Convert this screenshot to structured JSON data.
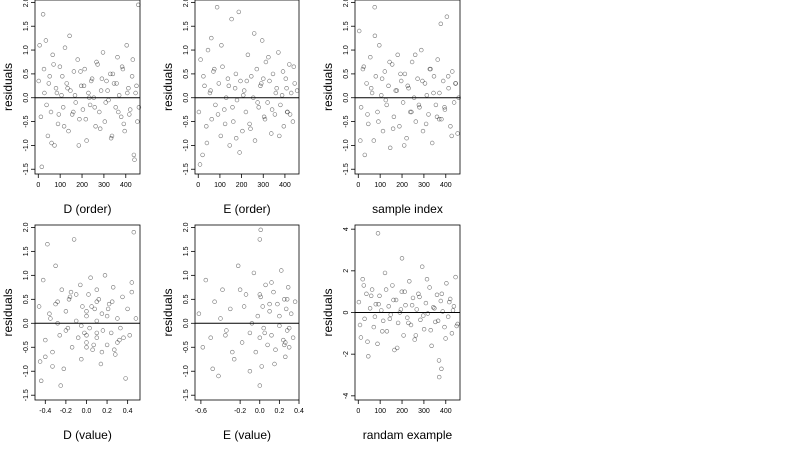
{
  "chart_data": [
    {
      "type": "scatter",
      "xlabel": "D (order)",
      "ylabel": "residuals",
      "xticks": [
        "0",
        "100",
        "200",
        "300",
        "400"
      ],
      "xtick_values": [
        0,
        100,
        200,
        300,
        400
      ],
      "yticks": [
        "-1.5",
        "-1.0",
        "-0.5",
        "0.0",
        "0.5",
        "1.0",
        "1.5",
        "2.0"
      ],
      "ytick_values": [
        -1.5,
        -1.0,
        -0.5,
        0.0,
        0.5,
        1.0,
        1.5,
        2.0
      ],
      "xlim": [
        -15,
        465
      ],
      "ylim": [
        -1.6,
        2.05
      ],
      "reference_line_y": 0,
      "x": [
        2,
        12,
        22,
        28,
        35,
        44,
        52,
        58,
        66,
        74,
        81,
        90,
        99,
        106,
        114,
        122,
        130,
        138,
        147,
        155,
        163,
        171,
        180,
        188,
        196,
        204,
        212,
        221,
        229,
        237,
        246,
        254,
        262,
        271,
        279,
        287,
        296,
        304,
        312,
        321,
        329,
        337,
        346,
        354,
        362,
        370,
        379,
        387,
        395,
        404,
        412,
        420,
        429,
        437,
        445,
        453,
        6,
        16,
        26,
        38,
        48,
        61,
        70,
        85,
        94,
        110,
        118,
        134,
        143,
        160,
        168,
        185,
        193,
        209,
        217,
        233,
        242,
        258,
        266,
        283,
        291,
        308,
        317,
        333,
        341,
        358,
        366,
        383,
        391,
        407,
        416,
        432,
        440,
        449,
        457,
        460
      ],
      "y": [
        0.35,
        -0.4,
        1.75,
        0.1,
        1.2,
        -0.8,
        0.45,
        -0.3,
        0.9,
        -1.0,
        0.2,
        -0.55,
        0.65,
        0.05,
        -0.2,
        1.05,
        0.3,
        -0.7,
        0.15,
        -0.35,
        0.55,
        -0.1,
        0.8,
        -0.45,
        0.25,
        -0.25,
        0.6,
        -0.9,
        0.1,
        -0.15,
        0.4,
        0.0,
        -0.6,
        0.7,
        -0.3,
        0.15,
        0.95,
        -0.5,
        0.35,
        -0.05,
        0.5,
        -0.8,
        0.3,
        -0.2,
        0.85,
        0.05,
        -0.4,
        0.6,
        -0.7,
        1.1,
        0.2,
        -0.25,
        0.45,
        -1.2,
        0.1,
        -0.5,
        1.1,
        -1.45,
        0.6,
        -0.15,
        0.3,
        -0.95,
        0.7,
        0.1,
        -0.35,
        0.45,
        -0.6,
        0.2,
        1.3,
        -0.3,
        0.05,
        -1.0,
        0.55,
        0.25,
        -0.45,
        0.0,
        0.35,
        -0.2,
        0.75,
        -0.65,
        0.4,
        -0.1,
        0.15,
        -0.85,
        0.5,
        0.3,
        -0.3,
        0.65,
        -0.55,
        0.1,
        -0.35,
        0.8,
        -1.3,
        0.25,
        1.95,
        -0.2
      ]
    },
    {
      "type": "scatter",
      "xlabel": "E (order)",
      "ylabel": "residuals",
      "xticks": [
        "0",
        "100",
        "200",
        "300",
        "400"
      ],
      "xtick_values": [
        0,
        100,
        200,
        300,
        400
      ],
      "yticks": [
        "-1.5",
        "-1.0",
        "-0.5",
        "0.0",
        "0.5",
        "1.0",
        "1.5",
        "2.0"
      ],
      "ytick_values": [
        -1.5,
        -1.0,
        -0.5,
        0.0,
        0.5,
        1.0,
        1.5,
        2.0
      ],
      "xlim": [
        -15,
        465
      ],
      "ylim": [
        -1.6,
        2.05
      ],
      "reference_line_y": 0,
      "x": [
        3,
        11,
        20,
        29,
        37,
        45,
        54,
        62,
        70,
        79,
        87,
        95,
        104,
        112,
        120,
        129,
        137,
        145,
        154,
        162,
        170,
        179,
        187,
        195,
        204,
        212,
        220,
        229,
        237,
        245,
        254,
        262,
        270,
        279,
        287,
        295,
        304,
        312,
        320,
        329,
        337,
        345,
        354,
        362,
        370,
        379,
        387,
        395,
        404,
        412,
        420,
        429,
        437,
        445,
        8,
        24,
        40,
        57,
        74,
        91,
        107,
        124,
        141,
        158,
        174,
        191,
        208,
        224,
        241,
        258,
        274,
        291,
        308,
        324,
        341,
        358,
        374,
        391,
        408,
        424,
        441,
        456,
        60,
        175,
        300,
        410
      ],
      "y": [
        -0.3,
        0.8,
        -1.2,
        0.25,
        -0.6,
        1.0,
        0.1,
        -0.45,
        0.55,
        -0.15,
        1.9,
        0.3,
        -0.8,
        0.65,
        -0.25,
        0.0,
        0.4,
        -1.0,
        1.65,
        -0.5,
        0.2,
        -0.05,
        1.8,
        0.35,
        -0.7,
        0.15,
        -0.3,
        0.9,
        -0.55,
        0.45,
        0.0,
        -0.9,
        0.6,
        -0.2,
        0.25,
        1.2,
        -0.4,
        0.75,
        -0.1,
        0.35,
        -0.75,
        0.5,
        -0.35,
        0.2,
        0.95,
        -0.15,
        0.05,
        -0.6,
        0.4,
        -0.3,
        0.7,
        0.1,
        -0.5,
        0.3,
        -1.4,
        0.45,
        -0.95,
        0.15,
        0.6,
        -0.35,
        1.1,
        -0.55,
        0.25,
        -0.2,
        0.5,
        -1.15,
        0.05,
        0.35,
        -0.65,
        1.35,
        -0.1,
        0.3,
        -0.45,
        0.85,
        -0.25,
        0.1,
        -0.8,
        0.55,
        0.2,
        -0.35,
        0.65,
        0.15,
        1.25,
        -0.85,
        0.4,
        -0.3
      ]
    },
    {
      "type": "scatter",
      "xlabel": "sample index",
      "ylabel": "residuals",
      "xticks": [
        "0",
        "100",
        "200",
        "300",
        "400"
      ],
      "xtick_values": [
        0,
        100,
        200,
        300,
        400
      ],
      "yticks": [
        "-1.5",
        "-1.0",
        "-0.5",
        "0.0",
        "0.5",
        "1.0",
        "1.5",
        "2.0"
      ],
      "ytick_values": [
        -1.5,
        -1.0,
        -0.5,
        0.0,
        0.5,
        1.0,
        1.5,
        2.0
      ],
      "xlim": [
        -15,
        465
      ],
      "ylim": [
        -1.6,
        2.05
      ],
      "reference_line_y": 0,
      "x": [
        4,
        13,
        21,
        30,
        38,
        46,
        55,
        63,
        71,
        80,
        88,
        96,
        105,
        113,
        121,
        130,
        138,
        146,
        155,
        163,
        171,
        180,
        188,
        196,
        205,
        213,
        221,
        230,
        238,
        246,
        255,
        263,
        271,
        280,
        288,
        296,
        305,
        313,
        321,
        330,
        338,
        346,
        355,
        363,
        371,
        380,
        388,
        396,
        405,
        413,
        421,
        430,
        438,
        446,
        454,
        9,
        25,
        42,
        59,
        76,
        92,
        109,
        126,
        143,
        159,
        176,
        193,
        210,
        226,
        243,
        260,
        277,
        293,
        310,
        327,
        344,
        360,
        377,
        394,
        411,
        427,
        444,
        459,
        75,
        370
      ],
      "y": [
        1.4,
        -0.2,
        0.6,
        -1.2,
        0.3,
        -0.55,
        0.85,
        0.1,
        -0.9,
        0.45,
        -0.3,
        1.1,
        0.05,
        -0.7,
        0.55,
        -0.15,
        0.25,
        -1.05,
        0.7,
        -0.4,
        0.15,
        0.9,
        -0.6,
        0.35,
        -0.1,
        0.5,
        -0.85,
        0.2,
        -0.3,
        0.75,
        0.0,
        -0.5,
        0.4,
        -0.2,
        1.0,
        -0.7,
        0.3,
        0.05,
        -0.35,
        0.6,
        -0.95,
        0.45,
        -0.15,
        0.8,
        0.1,
        -0.45,
        0.35,
        -0.25,
        1.7,
        0.2,
        -0.6,
        0.55,
        -0.1,
        0.3,
        -0.75,
        -0.9,
        0.65,
        -0.35,
        0.2,
        1.3,
        -0.5,
        0.4,
        -0.05,
        0.75,
        -0.65,
        0.15,
        0.5,
        -1.0,
        0.25,
        -0.3,
        0.9,
        -0.15,
        0.35,
        -0.55,
        0.6,
        0.1,
        -0.4,
        1.55,
        -0.2,
        0.45,
        -0.8,
        0.3,
        0.0,
        1.9,
        -0.45
      ]
    },
    {
      "type": "scatter",
      "xlabel": "D (value)",
      "ylabel": "residuals",
      "xticks": [
        "-0.4",
        "-0.2",
        "0.0",
        "0.2",
        "0.4"
      ],
      "xtick_values": [
        -0.4,
        -0.2,
        0.0,
        0.2,
        0.4
      ],
      "yticks": [
        "-1.5",
        "-1.0",
        "-0.5",
        "0.0",
        "0.5",
        "1.0",
        "1.5",
        "2.0"
      ],
      "ytick_values": [
        -1.5,
        -1.0,
        -0.5,
        0.0,
        0.5,
        1.0,
        1.5,
        2.0
      ],
      "xlim": [
        -0.5,
        0.52
      ],
      "ylim": [
        -1.6,
        2.05
      ],
      "reference_line_y": 0,
      "x": [
        -0.46,
        -0.44,
        -0.42,
        -0.4,
        -0.38,
        -0.35,
        -0.33,
        -0.3,
        -0.28,
        -0.26,
        -0.24,
        -0.22,
        -0.2,
        -0.18,
        -0.16,
        -0.14,
        -0.12,
        -0.1,
        -0.08,
        -0.06,
        -0.05,
        -0.04,
        -0.02,
        0.0,
        0.0,
        0.02,
        0.03,
        0.04,
        0.06,
        0.08,
        0.1,
        0.1,
        0.12,
        0.14,
        0.15,
        0.16,
        0.18,
        0.2,
        0.22,
        0.24,
        0.26,
        0.28,
        0.3,
        0.32,
        0.35,
        0.38,
        0.4,
        0.42,
        0.44,
        0.46,
        -0.4,
        -0.3,
        -0.2,
        -0.1,
        0.0,
        0.0,
        0.1,
        0.1,
        0.2,
        0.3,
        -0.36,
        -0.25,
        -0.15,
        -0.05,
        0.05,
        0.15,
        0.25,
        0.36,
        0.48,
        -0.33,
        -0.17,
        0.07,
        0.21,
        0.33,
        0.44,
        -0.45,
        0.0,
        0.1,
        0.27,
        -0.28
      ],
      "y": [
        0.35,
        -1.2,
        0.9,
        -0.35,
        1.65,
        0.1,
        -0.6,
        1.2,
        0.45,
        -0.25,
        0.7,
        -0.95,
        0.25,
        -0.1,
        0.55,
        -0.5,
        1.75,
        0.05,
        -0.3,
        0.8,
        -0.75,
        0.35,
        -0.2,
        0.15,
        -0.4,
        0.6,
        -0.1,
        0.95,
        -0.55,
        0.3,
        -0.3,
        0.05,
        0.5,
        -0.85,
        0.2,
        -0.15,
        1.0,
        -0.45,
        0.4,
        -0.2,
        0.75,
        -0.65,
        0.1,
        -0.35,
        0.55,
        -1.15,
        0.3,
        -0.25,
        0.85,
        1.9,
        -0.7,
        0.4,
        -0.15,
        0.6,
        -0.5,
        0.25,
        -0.2,
        0.7,
        0.15,
        -0.4,
        0.2,
        -1.3,
        0.65,
        -0.05,
        0.35,
        -0.6,
        0.45,
        -0.3,
        0.1,
        -0.9,
        0.5,
        -0.45,
        0.3,
        -0.1,
        0.65,
        -0.8,
        -0.25,
        0.45,
        -0.55,
        0.0
      ]
    },
    {
      "type": "scatter",
      "xlabel": "E (value)",
      "ylabel": "residuals",
      "xticks": [
        "-0.6",
        "-0.2",
        "0.0",
        "0.2",
        "0.4"
      ],
      "xtick_values": [
        -0.6,
        -0.2,
        0.0,
        0.2,
        0.4
      ],
      "yticks": [
        "-1.5",
        "-1.0",
        "-0.5",
        "0.0",
        "0.5",
        "1.0",
        "1.5",
        "2.0"
      ],
      "ytick_values": [
        -1.5,
        -1.0,
        -0.5,
        0.0,
        0.5,
        1.0,
        1.5,
        2.0
      ],
      "xlim": [
        -0.66,
        0.4
      ],
      "ylim": [
        -1.6,
        2.05
      ],
      "reference_line_y": 0,
      "x": [
        -0.62,
        -0.58,
        -0.55,
        -0.5,
        -0.46,
        -0.42,
        -0.38,
        -0.34,
        -0.3,
        -0.26,
        -0.22,
        -0.18,
        -0.14,
        -0.1,
        -0.06,
        -0.04,
        -0.02,
        0.0,
        0.0,
        0.01,
        0.02,
        0.03,
        0.04,
        0.06,
        0.08,
        0.1,
        0.12,
        0.14,
        0.16,
        0.18,
        0.2,
        0.22,
        0.24,
        0.25,
        0.26,
        0.27,
        0.28,
        0.29,
        0.3,
        0.32,
        0.34,
        0.36,
        -0.48,
        -0.4,
        -0.28,
        -0.16,
        -0.08,
        0.0,
        0.0,
        0.05,
        0.1,
        0.15,
        0.2,
        0.25,
        0.28,
        0.3,
        -0.2,
        0.01,
        0.26,
        -0.1,
        0.12,
        -0.35
      ],
      "y": [
        0.2,
        -0.5,
        0.9,
        -0.3,
        0.45,
        -1.1,
        0.7,
        -0.15,
        0.3,
        -0.75,
        1.2,
        -0.4,
        0.6,
        -0.2,
        1.05,
        -0.6,
        0.15,
        1.75,
        -0.3,
        0.55,
        -0.9,
        0.35,
        -0.1,
        0.8,
        -0.45,
        0.25,
        -0.25,
        0.65,
        -0.55,
        0.4,
        -0.05,
        1.1,
        -0.35,
        0.5,
        -0.7,
        0.3,
        -0.15,
        0.75,
        -0.5,
        0.2,
        -0.3,
        0.45,
        -0.95,
        0.1,
        -0.6,
        0.35,
        0.0,
        -1.3,
        0.6,
        -0.2,
        0.4,
        -0.85,
        0.15,
        -0.45,
        0.5,
        -0.1,
        0.7,
        1.95,
        -0.4,
        -1.0,
        0.85,
        -0.25
      ]
    },
    {
      "type": "scatter",
      "xlabel": "randam example",
      "ylabel": "residuals",
      "xticks": [
        "0",
        "100",
        "200",
        "300",
        "400"
      ],
      "xtick_values": [
        0,
        100,
        200,
        300,
        400
      ],
      "yticks": [
        "-4",
        "-2",
        "0",
        "2",
        "4"
      ],
      "ytick_values": [
        -4,
        -2,
        0,
        2,
        4
      ],
      "xlim": [
        -15,
        465
      ],
      "ylim": [
        -4.2,
        4.2
      ],
      "reference_line_y": 0,
      "x": [
        3,
        12,
        20,
        29,
        37,
        46,
        54,
        63,
        71,
        80,
        88,
        97,
        105,
        114,
        122,
        131,
        139,
        148,
        156,
        165,
        173,
        182,
        190,
        199,
        207,
        216,
        224,
        233,
        241,
        250,
        258,
        267,
        275,
        284,
        292,
        301,
        309,
        318,
        326,
        335,
        343,
        352,
        360,
        369,
        377,
        386,
        394,
        403,
        411,
        420,
        428,
        437,
        445,
        454,
        8,
        25,
        42,
        59,
        76,
        93,
        110,
        127,
        144,
        161,
        178,
        195,
        212,
        229,
        246,
        263,
        280,
        297,
        314,
        331,
        348,
        365,
        382,
        399,
        416,
        433,
        450,
        90,
        200,
        370,
        380
      ],
      "y": [
        0.5,
        -1.2,
        1.6,
        -0.3,
        0.9,
        -2.1,
        0.2,
        1.1,
        -0.7,
        0.4,
        -1.5,
        0.8,
        0.1,
        -0.4,
        1.9,
        -0.9,
        0.3,
        -0.1,
        1.3,
        -1.8,
        0.6,
        -0.5,
        0.0,
        1.0,
        -1.1,
        0.35,
        -0.25,
        1.5,
        -0.6,
        0.7,
        -1.3,
        0.15,
        0.9,
        -0.35,
        2.2,
        -0.8,
        0.45,
        -0.05,
        1.2,
        -1.6,
        0.25,
        -0.45,
        0.85,
        -2.3,
        0.55,
        0.05,
        -0.7,
        1.4,
        -0.2,
        0.65,
        -1.0,
        0.3,
        1.7,
        -0.55,
        -0.6,
        1.3,
        -1.4,
        0.8,
        -0.2,
        0.4,
        -0.9,
        1.1,
        -0.3,
        0.6,
        -1.7,
        0.15,
        1.0,
        -0.5,
        0.35,
        -1.1,
        0.75,
        -0.15,
        1.6,
        -0.85,
        0.2,
        -0.4,
        0.9,
        -1.25,
        0.5,
        0.1,
        -0.65,
        3.8,
        2.6,
        -3.1,
        -2.7
      ]
    }
  ]
}
